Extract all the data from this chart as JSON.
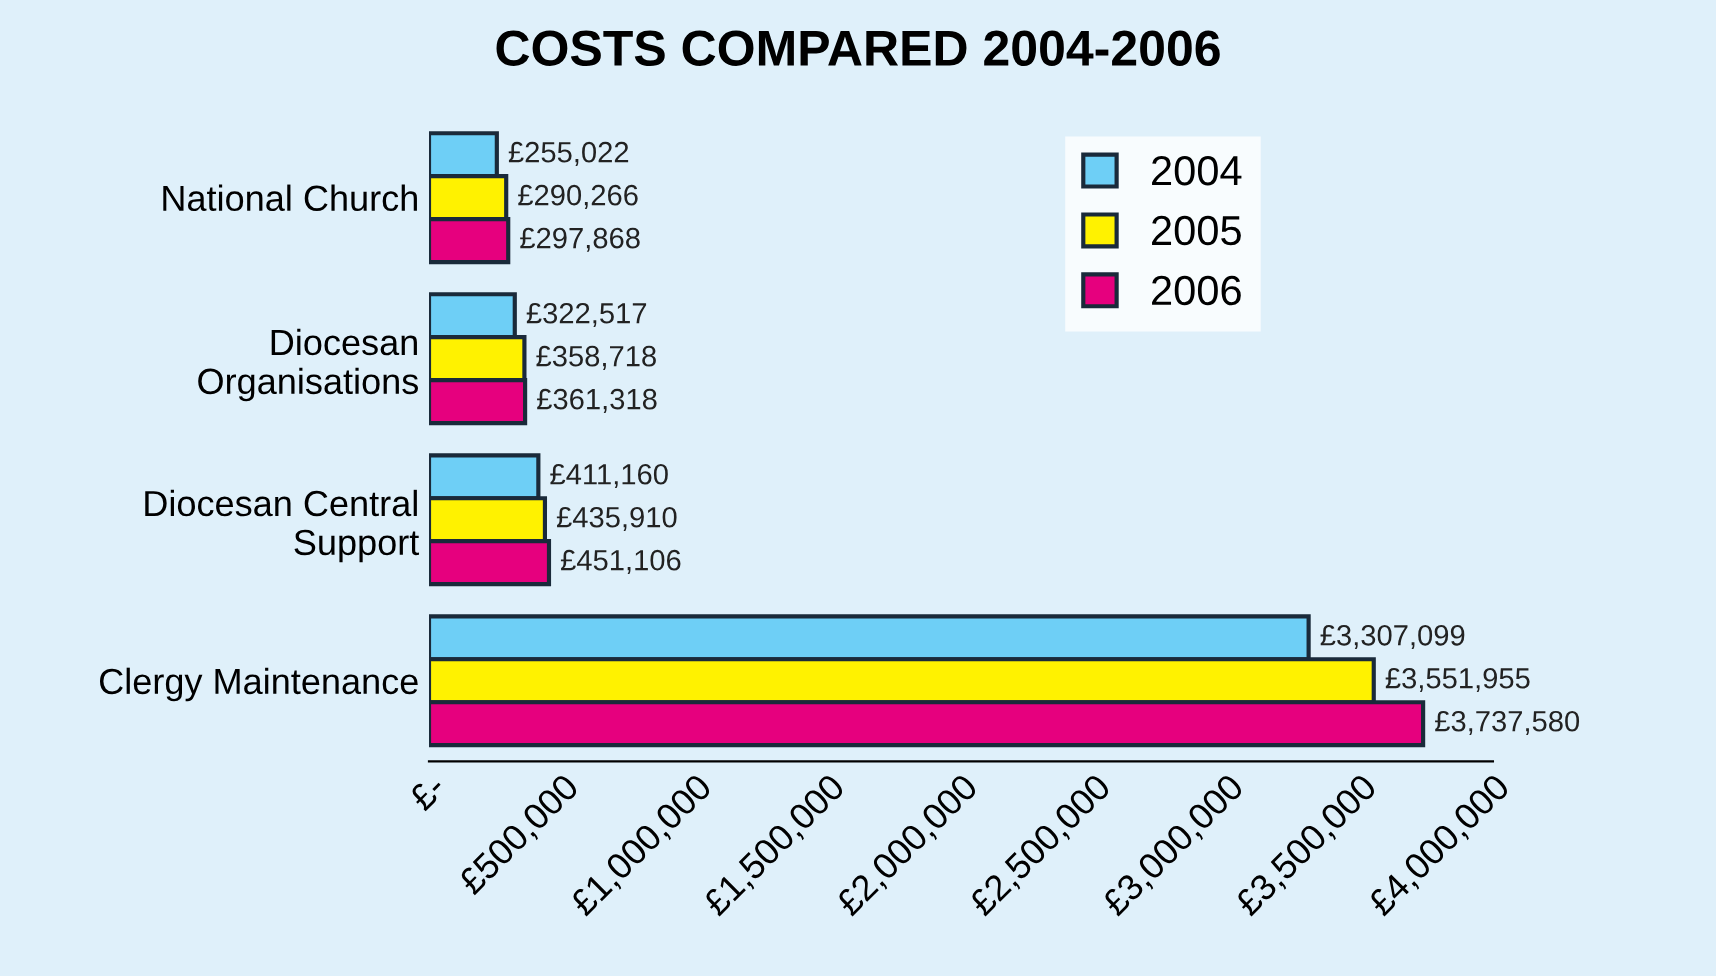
{
  "chart_data": {
    "type": "bar",
    "orientation": "horizontal",
    "title": "COSTS COMPARED 2004-2006",
    "categories": [
      "National Church",
      "Diocesan\nOrganisations",
      "Diocesan Central\nSupport",
      "Clergy Maintenance"
    ],
    "series": [
      {
        "name": "2004",
        "color": "#6ecff6",
        "values": [
          255022,
          322517,
          411160,
          3307099
        ],
        "value_labels": [
          "£255,022",
          "£322,517",
          "£411,160",
          "£3,307,099"
        ]
      },
      {
        "name": "2005",
        "color": "#fff200",
        "values": [
          290266,
          358718,
          435910,
          3551955
        ],
        "value_labels": [
          "£290,266",
          "£358,718",
          "£435,910",
          "£3,551,955"
        ]
      },
      {
        "name": "2006",
        "color": "#e6007e",
        "values": [
          297868,
          361318,
          451106,
          3737580
        ],
        "value_labels": [
          "£297,868",
          "£361,318",
          "£451,106",
          "£3,737,580"
        ]
      }
    ],
    "xlim": [
      0,
      4000000
    ],
    "xticks": [
      {
        "value": 0,
        "label": "£-"
      },
      {
        "value": 500000,
        "label": "£500,000"
      },
      {
        "value": 1000000,
        "label": "£1,000,000"
      },
      {
        "value": 1500000,
        "label": "£1,500,000"
      },
      {
        "value": 2000000,
        "label": "£2,000,000"
      },
      {
        "value": 2500000,
        "label": "£2,500,000"
      },
      {
        "value": 3000000,
        "label": "£3,000,000"
      },
      {
        "value": 3500000,
        "label": "£3,500,000"
      },
      {
        "value": 4000000,
        "label": "£4,000,000"
      }
    ],
    "grid": false,
    "legend": "top right"
  }
}
